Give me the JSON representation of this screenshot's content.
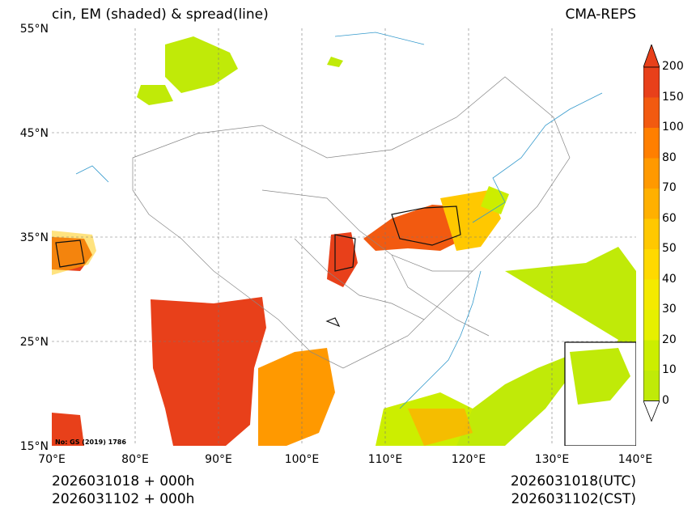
{
  "title": {
    "left": "cin, EM (shaded) & spread(line)",
    "right": "CMA-REPS"
  },
  "lat_labels": [
    "55°N",
    "45°N",
    "35°N",
    "25°N",
    "15°N"
  ],
  "lon_labels": [
    "70°E",
    "80°E",
    "90°E",
    "100°E",
    "110°E",
    "120°E",
    "130°E",
    "140°E"
  ],
  "colorbar": {
    "levels": [
      "200",
      "150",
      "100",
      "80",
      "70",
      "60",
      "50",
      "40",
      "30",
      "20",
      "10",
      "0"
    ],
    "colors": [
      "#e8401a",
      "#f25a10",
      "#ff7f00",
      "#ff9900",
      "#ffb000",
      "#ffc800",
      "#ffd900",
      "#f4ea00",
      "#e6f000",
      "#ccee00",
      "#c0ea08"
    ],
    "over_color": "#e8401a"
  },
  "note": "No: GS (2019) 1786",
  "footer": {
    "left_line1": "2026031018  +  000h",
    "left_line2": "2026031102  +  000h",
    "right_line1": "2026031018(UTC)",
    "right_line2": "2026031102(CST)"
  }
}
